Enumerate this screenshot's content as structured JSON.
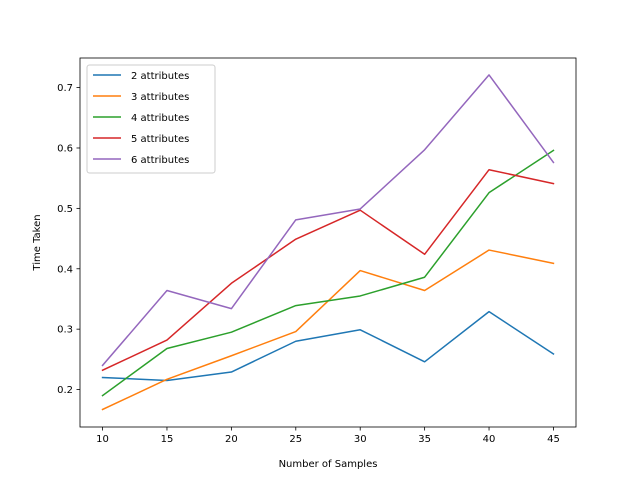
{
  "chart_data": {
    "type": "line",
    "title": "",
    "xlabel": "Number of Samples",
    "ylabel": "Time Taken",
    "xlim": [
      8.25,
      46.75
    ],
    "ylim": [
      0.138,
      0.749
    ],
    "xticks": [
      10,
      15,
      20,
      25,
      30,
      35,
      40,
      45
    ],
    "xtick_labels": [
      "10",
      "15",
      "20",
      "25",
      "30",
      "35",
      "40",
      "45"
    ],
    "yticks": [
      0.2,
      0.3,
      0.4,
      0.5,
      0.6,
      0.7
    ],
    "ytick_labels": [
      "0.2",
      "0.3",
      "0.4",
      "0.5",
      "0.6",
      "0.7"
    ],
    "grid": false,
    "legend_position": "top-left",
    "x": [
      10,
      15,
      20,
      25,
      30,
      35,
      40,
      45
    ],
    "series": [
      {
        "name": "2 attributes",
        "color": "#1f77b4",
        "values": [
          0.22,
          0.215,
          0.229,
          0.28,
          0.299,
          0.246,
          0.329,
          0.259
        ]
      },
      {
        "name": "3 attributes",
        "color": "#ff7f0e",
        "values": [
          0.167,
          0.217,
          0.256,
          0.296,
          0.397,
          0.364,
          0.431,
          0.409
        ]
      },
      {
        "name": "4 attributes",
        "color": "#2ca02c",
        "values": [
          0.19,
          0.268,
          0.295,
          0.339,
          0.355,
          0.386,
          0.526,
          0.596
        ]
      },
      {
        "name": "5 attributes",
        "color": "#d62728",
        "values": [
          0.232,
          0.282,
          0.376,
          0.449,
          0.497,
          0.424,
          0.564,
          0.541
        ]
      },
      {
        "name": "6 attributes",
        "color": "#9467bd",
        "values": [
          0.24,
          0.364,
          0.334,
          0.481,
          0.499,
          0.597,
          0.721,
          0.576
        ]
      }
    ]
  }
}
